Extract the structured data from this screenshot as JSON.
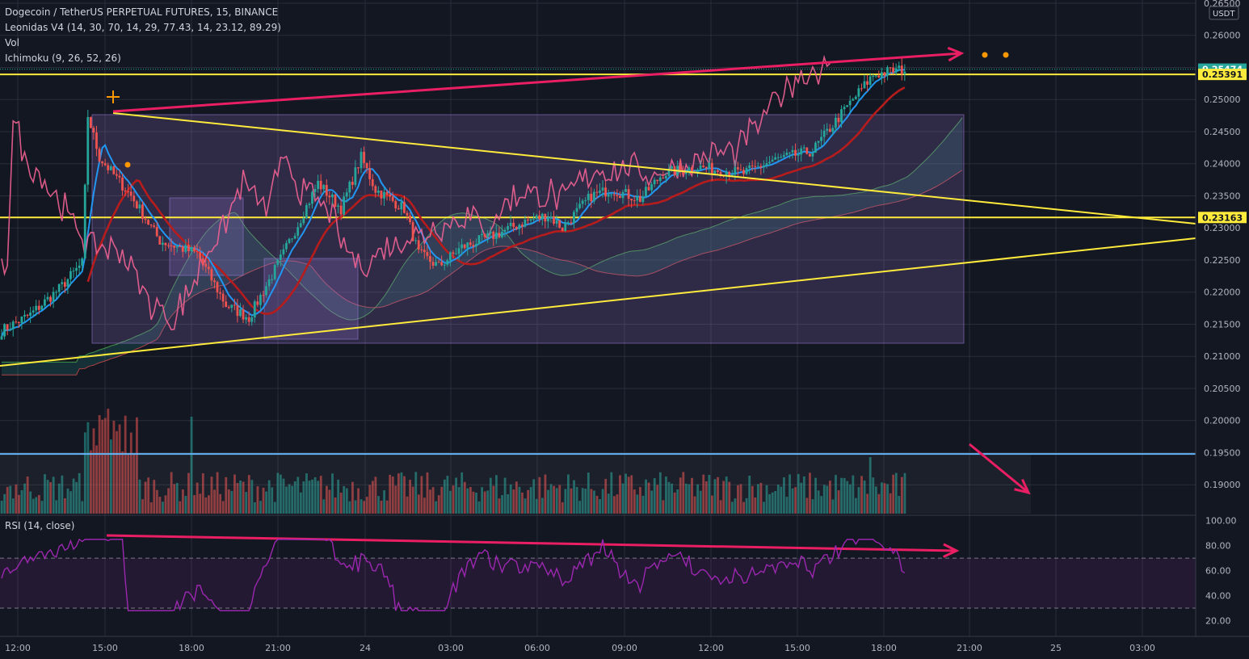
{
  "header": {
    "symbol": "Dogecoin / TetherUS PERPETUAL FUTURES, 15, BINANCE",
    "indicators": [
      "Leonidas V4 (14, 30, 70, 14, 29, 77.43, 14, 23.12, 89.29)",
      "Vol",
      "Ichimoku (9, 26, 52, 26)"
    ],
    "rsi_label": "RSI (14, close)"
  },
  "price_axis": {
    "unit_label": "USDT",
    "ticks": [
      "0.26500",
      "0.26000",
      "0.25500",
      "0.25000",
      "0.24500",
      "0.24000",
      "0.23500",
      "0.23000",
      "0.22500",
      "0.22000",
      "0.21500",
      "0.21000",
      "0.20500",
      "0.20000",
      "0.19500",
      "0.19000"
    ],
    "badges": [
      {
        "value": "0.25474",
        "price": 0.25474,
        "bg": "#26a69a",
        "fg": "#ffffff"
      },
      {
        "value": "0.25391",
        "price": 0.25391,
        "bg": "#ffeb3b",
        "fg": "#131722"
      },
      {
        "value": "0.23163",
        "price": 0.23163,
        "bg": "#ffeb3b",
        "fg": "#131722"
      }
    ]
  },
  "rsi_axis": {
    "ticks": [
      "100.00",
      "80.00",
      "60.00",
      "40.00",
      "20.00"
    ]
  },
  "time_axis": {
    "ticks": [
      "12:00",
      "15:00",
      "18:00",
      "21:00",
      "24",
      "03:00",
      "06:00",
      "09:00",
      "12:00",
      "15:00",
      "18:00",
      "21:00",
      "25",
      "03:00"
    ]
  },
  "colors": {
    "up": "#26a69a",
    "down": "#ef5350",
    "tenkan": "#2196f3",
    "kijun": "#b71c1c",
    "leonidas": "#f06292",
    "trendline": "#ffeb3b",
    "arrow": "#e91e63",
    "rsi": "#9c27b0",
    "box": "#9575cd"
  },
  "chart_data": {
    "type": "candlestick",
    "title": "Dogecoin / TetherUS PERPETUAL FUTURES, 15, BINANCE",
    "price_range": [
      0.1885,
      0.2655
    ],
    "rsi_range": [
      10,
      103
    ],
    "rsi_levels": [
      70,
      30
    ],
    "horizontal_levels": [
      0.25391,
      0.23163
    ],
    "last_price": 0.25474,
    "volume_threshold_line_price": 0.1948,
    "series_shapes": [
      {
        "name": "price",
        "waypoints": [
          [
            0,
            0.214
          ],
          [
            10,
            0.2165
          ],
          [
            20,
            0.2205
          ],
          [
            28,
            0.2245
          ],
          [
            30,
            0.2475
          ],
          [
            34,
            0.241
          ],
          [
            45,
            0.235
          ],
          [
            55,
            0.228
          ],
          [
            68,
            0.226
          ],
          [
            78,
            0.218
          ],
          [
            86,
            0.216
          ],
          [
            98,
            0.226
          ],
          [
            110,
            0.237
          ],
          [
            118,
            0.233
          ],
          [
            125,
            0.241
          ],
          [
            130,
            0.236
          ],
          [
            140,
            0.233
          ],
          [
            145,
            0.226
          ],
          [
            152,
            0.224
          ],
          [
            160,
            0.227
          ],
          [
            172,
            0.229
          ],
          [
            182,
            0.231
          ],
          [
            190,
            0.232
          ],
          [
            195,
            0.23
          ],
          [
            205,
            0.235
          ],
          [
            212,
            0.236
          ],
          [
            222,
            0.2345
          ],
          [
            230,
            0.2385
          ],
          [
            242,
            0.2395
          ],
          [
            258,
            0.2385
          ],
          [
            268,
            0.2405
          ],
          [
            282,
            0.242
          ],
          [
            288,
            0.2455
          ],
          [
            296,
            0.25
          ],
          [
            303,
            0.2538
          ],
          [
            310,
            0.2545
          ],
          [
            314,
            0.2547
          ]
        ]
      }
    ]
  }
}
